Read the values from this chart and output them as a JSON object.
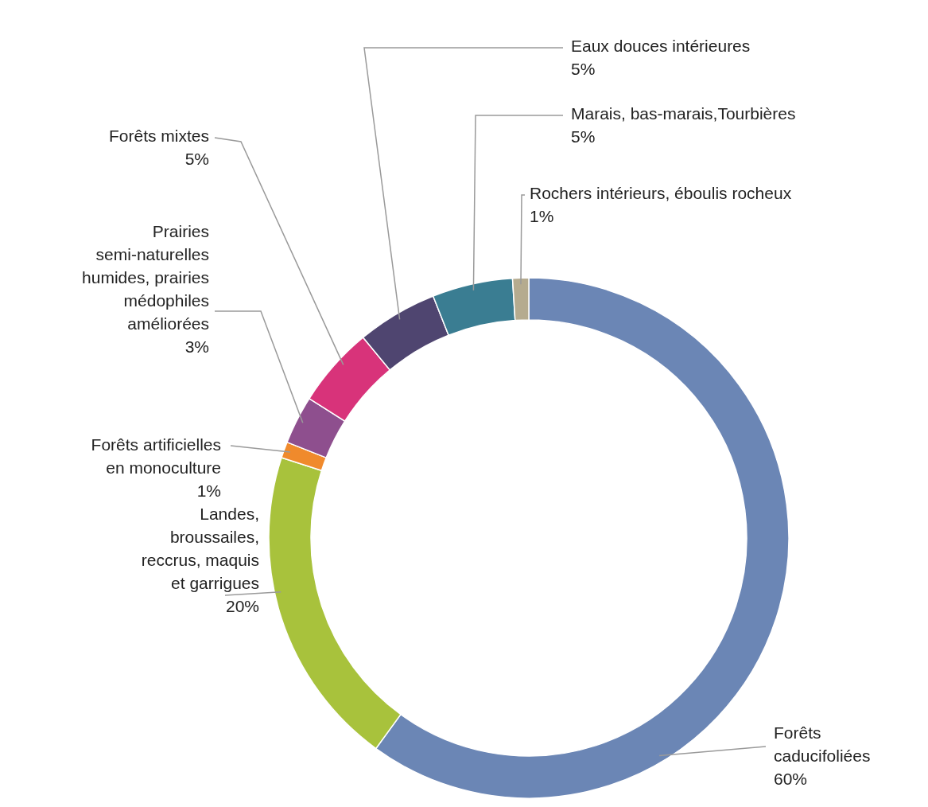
{
  "chart_data": {
    "type": "donut",
    "categories": [
      "Forêts\ncaducifoliées",
      "Landes,\nbroussailes,\nreccrus, maquis\net garrigues",
      "Forêts artificielles\nen monoculture",
      "Prairies\nsemi-naturelles\nhumides, prairies\nmédophiles\naméliorées",
      "Forêts mixtes",
      "Eaux douces intérieures",
      "Marais, bas-marais,Tourbières",
      "Rochers intérieurs, éboulis rocheux"
    ],
    "values": [
      60,
      20,
      1,
      3,
      5,
      5,
      5,
      1
    ],
    "value_labels": [
      "60%",
      "20%",
      "1%",
      "3%",
      "5%",
      "5%",
      "5%",
      "1%"
    ],
    "colors": [
      "#6b86b5",
      "#a8c23c",
      "#f08a2c",
      "#8e4f8e",
      "#d8337a",
      "#4f4570",
      "#3a7d92",
      "#b5ab8f"
    ]
  }
}
